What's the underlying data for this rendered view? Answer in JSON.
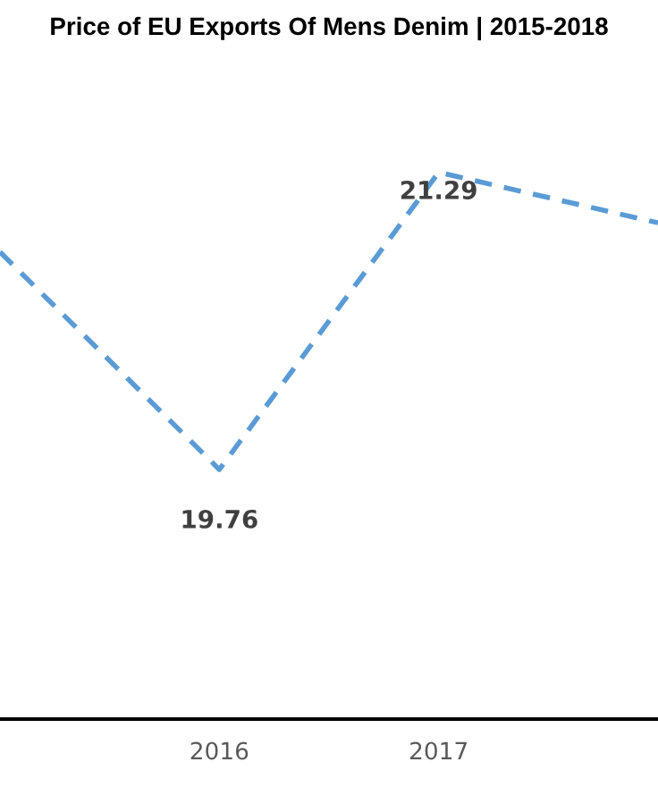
{
  "chart_data": {
    "type": "line",
    "title": "Price of EU Exports Of Mens Denim | 2015-2018",
    "categories": [
      null,
      "2016",
      "2017",
      null
    ],
    "series": [
      {
        "color": "#5b9bd5",
        "values": [
          20.88,
          19.76,
          21.29,
          21.03
        ],
        "value_labels": [
          null,
          "19.76",
          "21.29",
          null
        ]
      }
    ],
    "line_style": "dashed",
    "marker": "none",
    "grid": false,
    "legend": false
  }
}
